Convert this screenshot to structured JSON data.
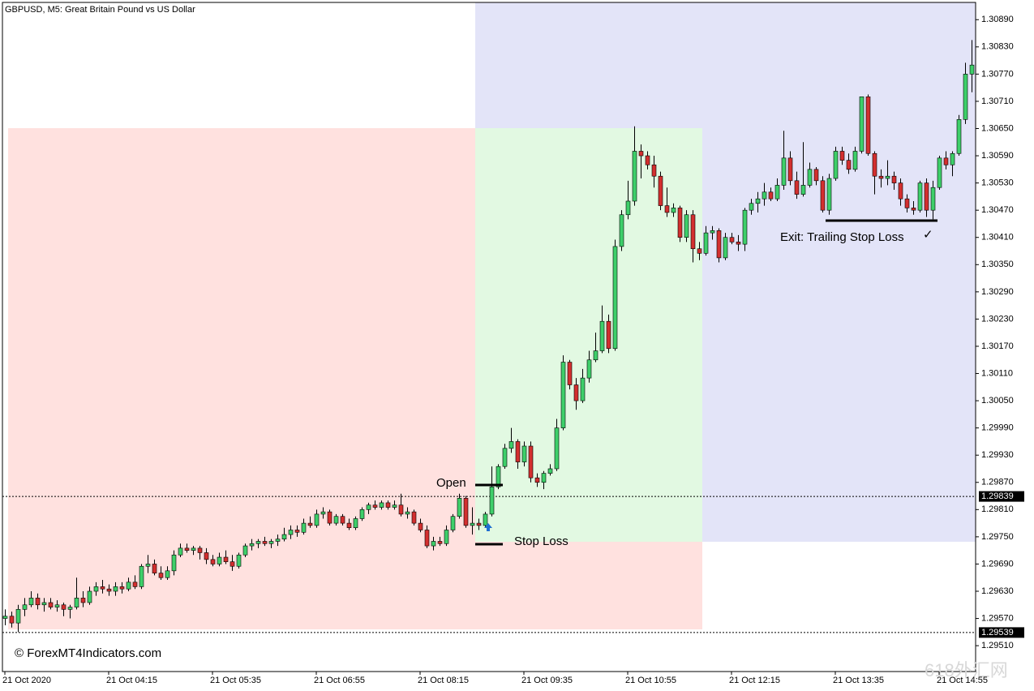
{
  "chart_data": {
    "type": "candlestick",
    "title": "GBPUSD, M5:  Great Britain Pound vs US Dollar",
    "categories": [
      "21 Oct 2020",
      null,
      null,
      null,
      null,
      null,
      null,
      null,
      null,
      null,
      null,
      null,
      null,
      null,
      null,
      null,
      "21 Oct 04:15",
      null,
      null,
      null,
      null,
      null,
      null,
      null,
      null,
      null,
      null,
      null,
      null,
      null,
      null,
      null,
      "21 Oct 05:35",
      null,
      null,
      null,
      null,
      null,
      null,
      null,
      null,
      null,
      null,
      null,
      null,
      null,
      null,
      null,
      "21 Oct 06:55",
      null,
      null,
      null,
      null,
      null,
      null,
      null,
      null,
      null,
      null,
      null,
      null,
      null,
      null,
      null,
      "21 Oct 08:15",
      null,
      null,
      null,
      null,
      null,
      null,
      null,
      null,
      null,
      null,
      null,
      null,
      null,
      null,
      null,
      "21 Oct 09:35",
      null,
      null,
      null,
      null,
      null,
      null,
      null,
      null,
      null,
      null,
      null,
      null,
      null,
      null,
      null,
      "21 Oct 10:55",
      null,
      null,
      null,
      null,
      null,
      null,
      null,
      null,
      null,
      null,
      null,
      null,
      null,
      null,
      null,
      "21 Oct 12:15",
      null,
      null,
      null,
      null,
      null,
      null,
      null,
      null,
      null,
      null,
      null,
      null,
      null,
      null,
      null,
      "21 Oct 13:35",
      null,
      null,
      null,
      null,
      null,
      null,
      null,
      null,
      null,
      null,
      null,
      null,
      null,
      null,
      null,
      "21 Oct 14:55",
      null,
      null,
      null,
      null,
      null
    ],
    "open": [
      1.2957,
      1.29575,
      1.2956,
      1.2959,
      1.296,
      1.29615,
      1.296,
      1.29605,
      1.29595,
      1.296,
      1.2959,
      1.29595,
      1.29615,
      1.29605,
      1.2963,
      1.2964,
      1.29635,
      1.2963,
      1.2964,
      1.29635,
      1.2965,
      1.2964,
      1.29685,
      1.2969,
      1.2967,
      1.2966,
      1.29675,
      1.2971,
      1.29725,
      1.2972,
      1.29725,
      1.29715,
      1.297,
      1.2969,
      1.29705,
      1.29695,
      1.29685,
      1.2971,
      1.2973,
      1.29735,
      1.2974,
      1.29735,
      1.2974,
      1.29745,
      1.29755,
      1.29765,
      1.2976,
      1.2978,
      1.29775,
      1.298,
      1.29805,
      1.2978,
      1.29795,
      1.2978,
      1.2977,
      1.2979,
      1.2981,
      1.2982,
      1.29815,
      1.29825,
      1.29815,
      1.2982,
      1.298,
      1.29805,
      1.2978,
      1.29765,
      1.2973,
      1.2974,
      1.29735,
      1.29765,
      1.29795,
      1.29835,
      1.29775,
      1.2978,
      1.29775,
      1.298,
      1.2986,
      1.29905,
      1.29945,
      1.2996,
      1.29915,
      1.2995,
      1.2988,
      1.2987,
      1.2989,
      1.299,
      1.2999,
      1.30135,
      1.30085,
      1.3005,
      1.301,
      1.3014,
      1.3016,
      1.30225,
      1.30165,
      1.3039,
      1.3046,
      1.3049,
      1.306,
      1.3059,
      1.3057,
      1.30545,
      1.3048,
      1.30465,
      1.30475,
      1.3041,
      1.3046,
      1.30385,
      1.30375,
      1.3042,
      1.30425,
      1.30365,
      1.3041,
      1.304,
      1.30395,
      1.3047,
      1.30485,
      1.30495,
      1.3051,
      1.30495,
      1.30525,
      1.30585,
      1.30535,
      1.30505,
      1.30525,
      1.3056,
      1.30535,
      1.3047,
      1.3054,
      1.306,
      1.3058,
      1.3056,
      1.306,
      1.3072,
      1.30595,
      1.30545,
      1.3054,
      1.30545,
      1.3053,
      1.30495,
      1.30475,
      1.3047,
      1.3053,
      1.3047,
      1.3052,
      1.30585,
      1.3057,
      1.30595,
      1.3067,
      1.3077
    ],
    "high": [
      1.2959,
      1.29585,
      1.296,
      1.29615,
      1.2963,
      1.29625,
      1.29615,
      1.29615,
      1.2961,
      1.29605,
      1.296,
      1.2966,
      1.2963,
      1.2964,
      1.2965,
      1.29655,
      1.29645,
      1.2965,
      1.2965,
      1.2966,
      1.29665,
      1.2969,
      1.2971,
      1.297,
      1.29685,
      1.29685,
      1.2972,
      1.29735,
      1.29735,
      1.2973,
      1.2973,
      1.29725,
      1.2971,
      1.29715,
      1.2972,
      1.2971,
      1.29715,
      1.29735,
      1.29745,
      1.29745,
      1.2975,
      1.29745,
      1.29755,
      1.2977,
      1.29775,
      1.29775,
      1.2979,
      1.29795,
      1.2981,
      1.29815,
      1.2981,
      1.298,
      1.298,
      1.2979,
      1.29795,
      1.29815,
      1.29825,
      1.2983,
      1.2983,
      1.2983,
      1.2983,
      1.29845,
      1.29815,
      1.2981,
      1.2979,
      1.29775,
      1.2975,
      1.2975,
      1.29775,
      1.298,
      1.29845,
      1.2984,
      1.29815,
      1.2979,
      1.29805,
      1.29905,
      1.2991,
      1.29955,
      1.2999,
      1.29965,
      1.2996,
      1.2996,
      1.2989,
      1.29895,
      1.2991,
      1.3001,
      1.3015,
      1.3014,
      1.301,
      1.3012,
      1.3016,
      1.302,
      1.3026,
      1.3024,
      1.30405,
      1.3047,
      1.30535,
      1.30655,
      1.30615,
      1.306,
      1.3059,
      1.30555,
      1.3052,
      1.30485,
      1.3048,
      1.3047,
      1.3047,
      1.304,
      1.30435,
      1.30435,
      1.3043,
      1.3042,
      1.3042,
      1.30415,
      1.30475,
      1.30495,
      1.3051,
      1.3053,
      1.3052,
      1.3054,
      1.30645,
      1.306,
      1.30555,
      1.3062,
      1.30575,
      1.30565,
      1.30545,
      1.3055,
      1.3061,
      1.3061,
      1.30595,
      1.3061,
      1.3072,
      1.30725,
      1.306,
      1.3056,
      1.3058,
      1.30555,
      1.3054,
      1.30505,
      1.3049,
      1.30535,
      1.3054,
      1.30535,
      1.3059,
      1.306,
      1.306,
      1.3068,
      1.30795,
      1.30845
    ],
    "low": [
      1.29555,
      1.2955,
      1.2954,
      1.29575,
      1.29595,
      1.2959,
      1.29585,
      1.2959,
      1.29585,
      1.29575,
      1.2957,
      1.2959,
      1.29595,
      1.296,
      1.2962,
      1.29625,
      1.2962,
      1.2962,
      1.29625,
      1.2963,
      1.29635,
      1.29635,
      1.2967,
      1.29665,
      1.29655,
      1.29655,
      1.29665,
      1.29705,
      1.29715,
      1.2971,
      1.297,
      1.2969,
      1.29685,
      1.29685,
      1.2969,
      1.29675,
      1.2968,
      1.29705,
      1.2972,
      1.29725,
      1.2973,
      1.29725,
      1.2973,
      1.2974,
      1.29745,
      1.2975,
      1.29755,
      1.2977,
      1.2977,
      1.2979,
      1.29775,
      1.29775,
      1.29775,
      1.29765,
      1.29765,
      1.29785,
      1.298,
      1.2981,
      1.2981,
      1.2981,
      1.2981,
      1.29795,
      1.2979,
      1.29775,
      1.2976,
      1.29725,
      1.2972,
      1.2973,
      1.2973,
      1.2976,
      1.2979,
      1.2977,
      1.29755,
      1.29765,
      1.2977,
      1.29795,
      1.29855,
      1.299,
      1.29935,
      1.299,
      1.29905,
      1.2987,
      1.2986,
      1.29855,
      1.29885,
      1.29895,
      1.29985,
      1.30075,
      1.3003,
      1.30045,
      1.3009,
      1.30135,
      1.30155,
      1.30155,
      1.3016,
      1.3038,
      1.3045,
      1.3048,
      1.3054,
      1.3056,
      1.3052,
      1.3047,
      1.30455,
      1.30455,
      1.304,
      1.304,
      1.30355,
      1.3036,
      1.3037,
      1.30405,
      1.30355,
      1.3036,
      1.30395,
      1.3038,
      1.3038,
      1.3046,
      1.30465,
      1.3048,
      1.3049,
      1.3049,
      1.30515,
      1.30525,
      1.30495,
      1.305,
      1.3052,
      1.30525,
      1.30465,
      1.3046,
      1.30535,
      1.3057,
      1.3055,
      1.30555,
      1.30595,
      1.3059,
      1.30505,
      1.3052,
      1.30525,
      1.30515,
      1.3048,
      1.30465,
      1.3046,
      1.30465,
      1.30455,
      1.3045,
      1.30515,
      1.3056,
      1.30545,
      1.3059,
      1.3066,
      1.3073
    ],
    "close": [
      1.29575,
      1.2956,
      1.2959,
      1.296,
      1.29615,
      1.296,
      1.29605,
      1.29595,
      1.296,
      1.2959,
      1.29595,
      1.29615,
      1.29605,
      1.2963,
      1.2964,
      1.29635,
      1.2963,
      1.2964,
      1.29635,
      1.2965,
      1.2964,
      1.29685,
      1.2969,
      1.2967,
      1.2966,
      1.29675,
      1.2971,
      1.29725,
      1.2972,
      1.29725,
      1.29715,
      1.297,
      1.2969,
      1.29705,
      1.29695,
      1.29685,
      1.2971,
      1.2973,
      1.29735,
      1.2974,
      1.29735,
      1.2974,
      1.29745,
      1.29755,
      1.29765,
      1.2976,
      1.2978,
      1.29775,
      1.298,
      1.29805,
      1.2978,
      1.29795,
      1.2978,
      1.2977,
      1.2979,
      1.2981,
      1.2982,
      1.29815,
      1.29825,
      1.29815,
      1.2982,
      1.298,
      1.29805,
      1.2978,
      1.29765,
      1.2973,
      1.2974,
      1.29735,
      1.29765,
      1.29795,
      1.29835,
      1.29775,
      1.2978,
      1.29775,
      1.298,
      1.2986,
      1.29905,
      1.29945,
      1.2996,
      1.29915,
      1.2995,
      1.2988,
      1.2987,
      1.2989,
      1.299,
      1.2999,
      1.30135,
      1.30085,
      1.3005,
      1.301,
      1.3014,
      1.3016,
      1.30225,
      1.30165,
      1.3039,
      1.3046,
      1.3049,
      1.306,
      1.3059,
      1.3057,
      1.30545,
      1.3048,
      1.30465,
      1.30475,
      1.3041,
      1.3046,
      1.30385,
      1.30375,
      1.3042,
      1.30425,
      1.30365,
      1.3041,
      1.304,
      1.30395,
      1.3047,
      1.30485,
      1.30495,
      1.3051,
      1.30495,
      1.30525,
      1.30585,
      1.30535,
      1.30505,
      1.30525,
      1.3056,
      1.30535,
      1.3047,
      1.3054,
      1.306,
      1.3058,
      1.3056,
      1.306,
      1.3072,
      1.30595,
      1.30545,
      1.3054,
      1.30545,
      1.3053,
      1.30495,
      1.30475,
      1.3047,
      1.3053,
      1.3047,
      1.3052,
      1.30585,
      1.3057,
      1.30595,
      1.3067,
      1.3077,
      1.3079
    ],
    "up_color": "#3ecf6a",
    "down_color": "#d32f2f",
    "ylim": [
      1.29453,
      1.30928
    ],
    "yticks": [
      {
        "value": 1.3089,
        "label": "1.30890"
      },
      {
        "value": 1.3083,
        "label": "1.30830"
      },
      {
        "value": 1.3077,
        "label": "1.30770"
      },
      {
        "value": 1.3071,
        "label": "1.30710"
      },
      {
        "value": 1.3065,
        "label": "1.30650"
      },
      {
        "value": 1.3059,
        "label": "1.30590"
      },
      {
        "value": 1.3053,
        "label": "1.30530"
      },
      {
        "value": 1.3047,
        "label": "1.30470"
      },
      {
        "value": 1.3041,
        "label": "1.30410"
      },
      {
        "value": 1.3035,
        "label": "1.30350"
      },
      {
        "value": 1.3029,
        "label": "1.30290"
      },
      {
        "value": 1.3023,
        "label": "1.30230"
      },
      {
        "value": 1.3017,
        "label": "1.30170"
      },
      {
        "value": 1.3011,
        "label": "1.30110"
      },
      {
        "value": 1.3005,
        "label": "1.30050"
      },
      {
        "value": 1.2999,
        "label": "1.29990"
      },
      {
        "value": 1.2993,
        "label": "1.29930"
      },
      {
        "value": 1.2987,
        "label": "1.29870"
      },
      {
        "value": 1.2981,
        "label": "1.29810"
      },
      {
        "value": 1.2975,
        "label": "1.29750"
      },
      {
        "value": 1.2969,
        "label": "1.29690"
      },
      {
        "value": 1.2963,
        "label": "1.29630"
      },
      {
        "value": 1.2957,
        "label": "1.29570"
      },
      {
        "value": 1.2951,
        "label": "1.29510"
      }
    ],
    "price_lines": [
      1.29839,
      1.29539
    ],
    "annotations": {
      "open": "Open",
      "stop_loss": "Stop Loss",
      "exit": "Exit: Trailing Stop Loss",
      "check": "✓",
      "watermark": "© ForexMT4Indicators.com",
      "corner_mark": "618外汇网"
    }
  }
}
